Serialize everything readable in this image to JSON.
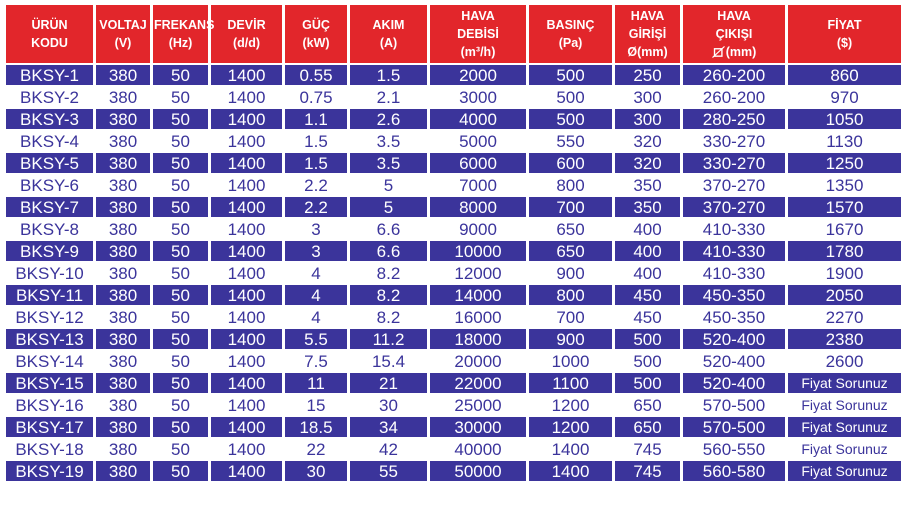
{
  "colors": {
    "header_bg": "#e2262b",
    "header_text": "#ffffff",
    "row_alt_bg": "#3b349b",
    "row_alt_text": "#ffffff",
    "row_bg": "#ffffff",
    "row_text": "#3b349b"
  },
  "table": {
    "columns": [
      {
        "id": "urun-kodu",
        "lines": [
          "ÜRÜN",
          "KODU"
        ]
      },
      {
        "id": "voltaj",
        "lines": [
          "VOLTAJ",
          "(V)"
        ]
      },
      {
        "id": "frekans",
        "lines": [
          "FREKANS",
          "(Hz)"
        ]
      },
      {
        "id": "devir",
        "lines": [
          "DEVİR",
          "(d/d)"
        ]
      },
      {
        "id": "guc",
        "lines": [
          "GÜÇ",
          "(kW)"
        ]
      },
      {
        "id": "akim",
        "lines": [
          "AKIM",
          "(A)"
        ]
      },
      {
        "id": "hava-debisi",
        "lines": [
          "HAVA",
          "DEBİSİ",
          "(m³/h)"
        ]
      },
      {
        "id": "basinc",
        "lines": [
          "BASINÇ",
          "(Pa)"
        ]
      },
      {
        "id": "hava-girisi",
        "lines": [
          "HAVA",
          "GİRİŞİ",
          "Ø(mm)"
        ]
      },
      {
        "id": "hava-cikisi",
        "lines": [
          "HAVA",
          "ÇIKIŞI",
          "(mm)"
        ],
        "symbol": "square-diagonal"
      },
      {
        "id": "fiyat",
        "lines": [
          "FİYAT",
          "($)"
        ]
      }
    ],
    "rows": [
      [
        "BKSY-1",
        "380",
        "50",
        "1400",
        "0.55",
        "1.5",
        "2000",
        "500",
        "250",
        "260-200",
        "860"
      ],
      [
        "BKSY-2",
        "380",
        "50",
        "1400",
        "0.75",
        "2.1",
        "3000",
        "500",
        "300",
        "260-200",
        "970"
      ],
      [
        "BKSY-3",
        "380",
        "50",
        "1400",
        "1.1",
        "2.6",
        "4000",
        "500",
        "300",
        "280-250",
        "1050"
      ],
      [
        "BKSY-4",
        "380",
        "50",
        "1400",
        "1.5",
        "3.5",
        "5000",
        "550",
        "320",
        "330-270",
        "1130"
      ],
      [
        "BKSY-5",
        "380",
        "50",
        "1400",
        "1.5",
        "3.5",
        "6000",
        "600",
        "320",
        "330-270",
        "1250"
      ],
      [
        "BKSY-6",
        "380",
        "50",
        "1400",
        "2.2",
        "5",
        "7000",
        "800",
        "350",
        "370-270",
        "1350"
      ],
      [
        "BKSY-7",
        "380",
        "50",
        "1400",
        "2.2",
        "5",
        "8000",
        "700",
        "350",
        "370-270",
        "1570"
      ],
      [
        "BKSY-8",
        "380",
        "50",
        "1400",
        "3",
        "6.6",
        "9000",
        "650",
        "400",
        "410-330",
        "1670"
      ],
      [
        "BKSY-9",
        "380",
        "50",
        "1400",
        "3",
        "6.6",
        "10000",
        "650",
        "400",
        "410-330",
        "1780"
      ],
      [
        "BKSY-10",
        "380",
        "50",
        "1400",
        "4",
        "8.2",
        "12000",
        "900",
        "400",
        "410-330",
        "1900"
      ],
      [
        "BKSY-11",
        "380",
        "50",
        "1400",
        "4",
        "8.2",
        "14000",
        "800",
        "450",
        "450-350",
        "2050"
      ],
      [
        "BKSY-12",
        "380",
        "50",
        "1400",
        "4",
        "8.2",
        "16000",
        "700",
        "450",
        "450-350",
        "2270"
      ],
      [
        "BKSY-13",
        "380",
        "50",
        "1400",
        "5.5",
        "11.2",
        "18000",
        "900",
        "500",
        "520-400",
        "2380"
      ],
      [
        "BKSY-14",
        "380",
        "50",
        "1400",
        "7.5",
        "15.4",
        "20000",
        "1000",
        "500",
        "520-400",
        "2600"
      ],
      [
        "BKSY-15",
        "380",
        "50",
        "1400",
        "11",
        "21",
        "22000",
        "1100",
        "500",
        "520-400",
        "Fiyat Sorunuz"
      ],
      [
        "BKSY-16",
        "380",
        "50",
        "1400",
        "15",
        "30",
        "25000",
        "1200",
        "650",
        "570-500",
        "Fiyat Sorunuz"
      ],
      [
        "BKSY-17",
        "380",
        "50",
        "1400",
        "18.5",
        "34",
        "30000",
        "1200",
        "650",
        "570-500",
        "Fiyat Sorunuz"
      ],
      [
        "BKSY-18",
        "380",
        "50",
        "1400",
        "22",
        "42",
        "40000",
        "1400",
        "745",
        "560-550",
        "Fiyat Sorunuz"
      ],
      [
        "BKSY-19",
        "380",
        "50",
        "1400",
        "30",
        "55",
        "50000",
        "1400",
        "745",
        "560-580",
        "Fiyat Sorunuz"
      ]
    ],
    "ask_price_label": "Fiyat Sorunuz"
  }
}
